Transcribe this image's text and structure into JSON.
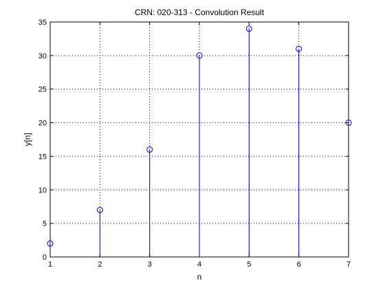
{
  "chart_data": {
    "type": "stem",
    "title": "CRN: 020-313 - Convolution Result",
    "xlabel": "n",
    "ylabel": "y[n]",
    "xlim": [
      1,
      7
    ],
    "ylim": [
      0,
      35
    ],
    "xticks": [
      "1",
      "2",
      "3",
      "4",
      "5",
      "6",
      "7"
    ],
    "yticks": [
      "0",
      "5",
      "10",
      "15",
      "20",
      "25",
      "30",
      "35"
    ],
    "grid": true,
    "x": [
      1,
      2,
      3,
      4,
      5,
      6,
      7
    ],
    "values": [
      2,
      7,
      16,
      30,
      34,
      31,
      20
    ],
    "colors": {
      "stem": "#0000ff",
      "axes": "#000000",
      "grid": "#000000",
      "background": "#ffffff"
    }
  }
}
